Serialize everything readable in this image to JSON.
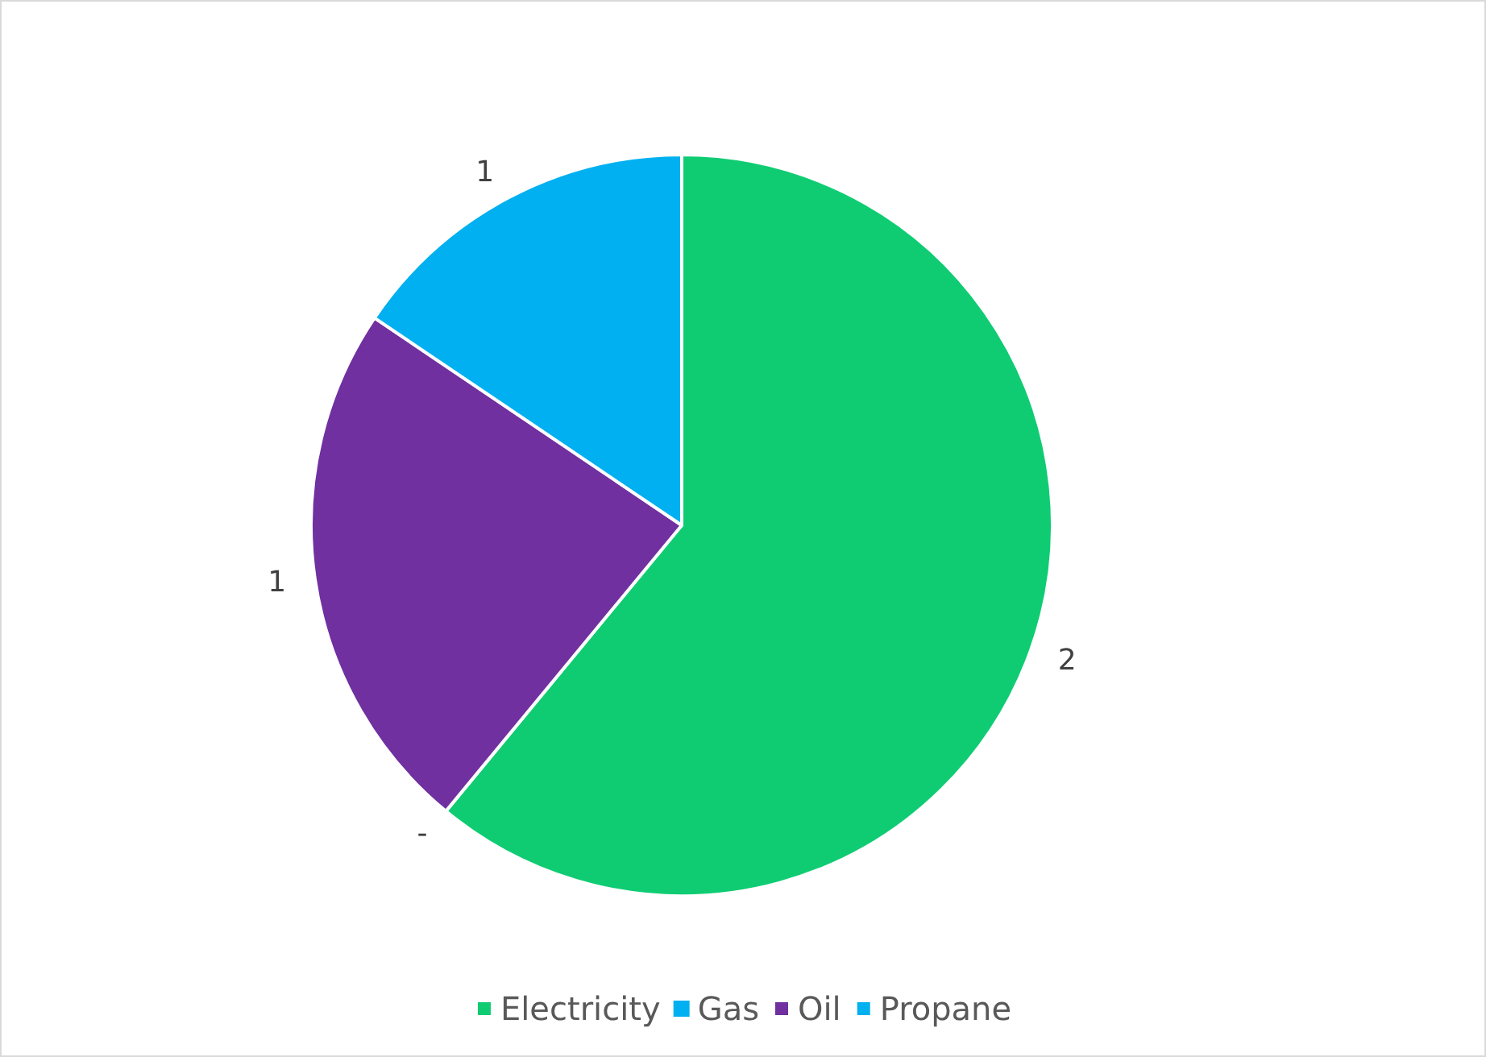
{
  "chart_data": {
    "type": "pie",
    "categories": [
      "Electricity",
      "Gas",
      "Oil",
      "Propane"
    ],
    "values": [
      2,
      0,
      0.77,
      0.51
    ],
    "value_labels": [
      "2",
      "-",
      "1",
      "1"
    ],
    "colors": [
      "#0fcc73",
      "#00b0f0",
      "#7030a0",
      "#00b0f0"
    ],
    "legend": "bottom"
  }
}
